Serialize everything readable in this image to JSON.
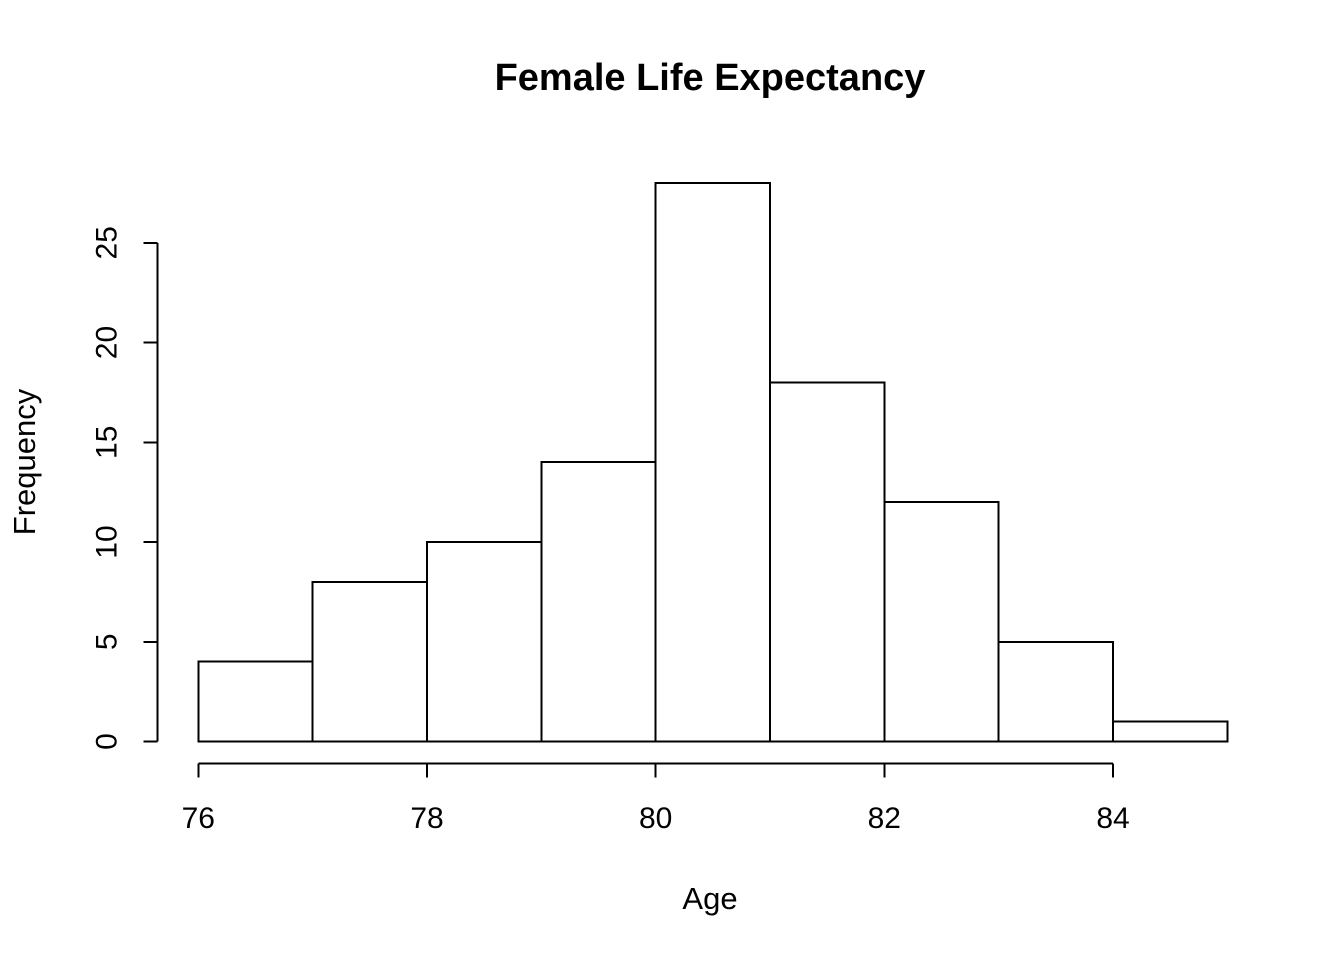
{
  "chart_data": {
    "type": "bar",
    "subtype": "histogram",
    "title": "Female Life Expectancy",
    "xlabel": "Age",
    "ylabel": "Frequency",
    "bin_edges": [
      76,
      77,
      78,
      79,
      80,
      81,
      82,
      83,
      84,
      85
    ],
    "counts": [
      4,
      8,
      10,
      14,
      28,
      18,
      12,
      5,
      1
    ],
    "x_ticks": [
      76,
      78,
      80,
      82,
      84
    ],
    "y_ticks": [
      0,
      5,
      10,
      15,
      20,
      25
    ],
    "xlim": [
      76,
      85
    ],
    "ylim": [
      0,
      28
    ],
    "grid": false,
    "legend_position": "none",
    "bar_fill": "#ffffff",
    "bar_stroke": "#000000",
    "axis_color": "#000000",
    "text_color": "#000000",
    "background": "#ffffff"
  }
}
